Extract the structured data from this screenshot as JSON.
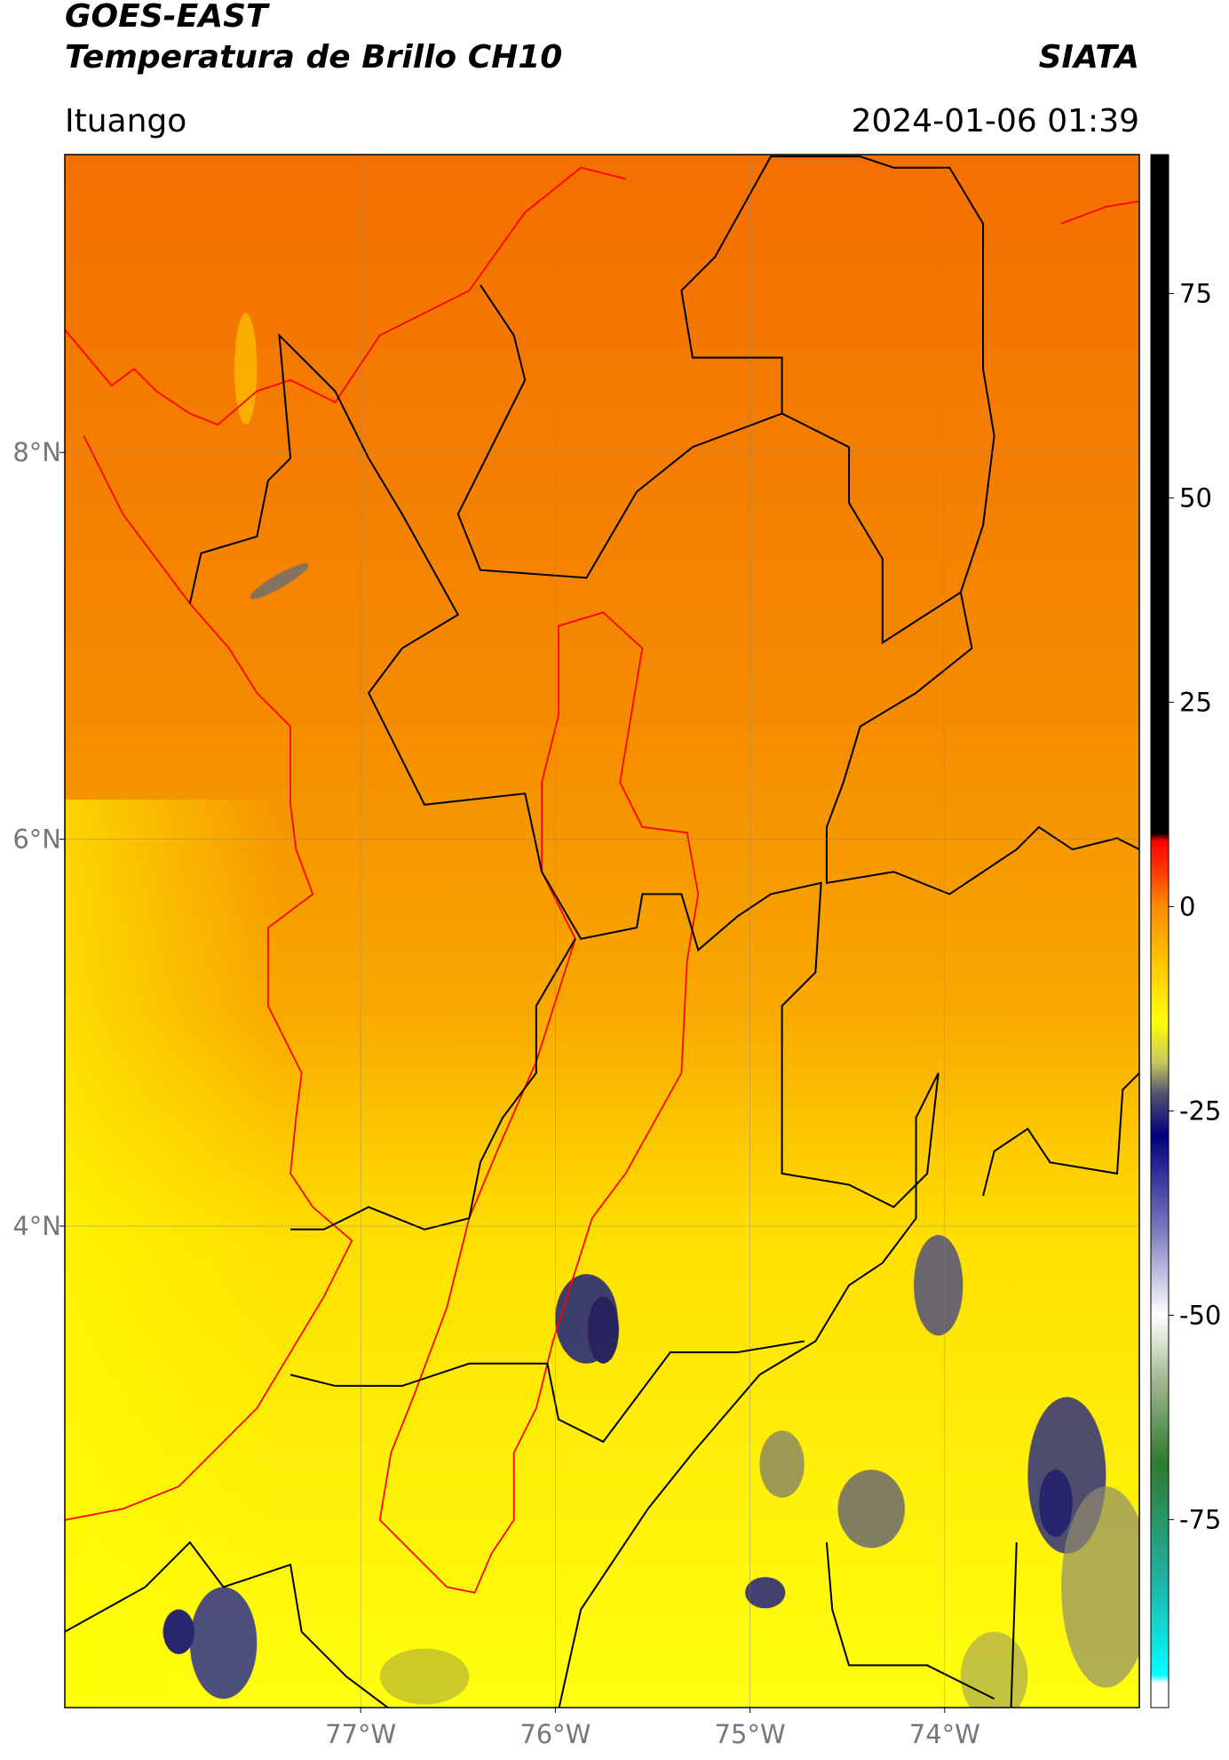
{
  "header": {
    "title": "GOES-EAST",
    "subtitle": "Temperatura de Brillo CH10",
    "brand": "SIATA",
    "location": "Ituango",
    "timestamp": "2024-01-06 01:39"
  },
  "map": {
    "xlim": [
      -78.52,
      -73.0
    ],
    "ylim": [
      1.51,
      9.54
    ],
    "xticks": [
      {
        "value": -77,
        "label": "77°W"
      },
      {
        "value": -76,
        "label": "76°W"
      },
      {
        "value": -75,
        "label": "75°W"
      },
      {
        "value": -74,
        "label": "74°W"
      }
    ],
    "yticks": [
      {
        "value": 8,
        "label": "8°N"
      },
      {
        "value": 6,
        "label": "6°N"
      },
      {
        "value": 4,
        "label": "4°N"
      }
    ],
    "grid": true
  },
  "colorbar": {
    "lim": [
      -98,
      92
    ],
    "ticks": [
      75,
      50,
      25,
      0,
      -25,
      -50,
      -75
    ],
    "stops": [
      {
        "value": 92,
        "color": "#000000"
      },
      {
        "value": 9,
        "color": "#000000"
      },
      {
        "value": 8,
        "color": "#ff0000"
      },
      {
        "value": 4,
        "color": "#ff4000"
      },
      {
        "value": 0,
        "color": "#ff8c00"
      },
      {
        "value": -14,
        "color": "#ffff00"
      },
      {
        "value": -19,
        "color": "#c8c860"
      },
      {
        "value": -23,
        "color": "#505070"
      },
      {
        "value": -28,
        "color": "#000080"
      },
      {
        "value": -40,
        "color": "#8080c0"
      },
      {
        "value": -50,
        "color": "#ffffff"
      },
      {
        "value": -58,
        "color": "#a0b890"
      },
      {
        "value": -68,
        "color": "#2f7a2f"
      },
      {
        "value": -82,
        "color": "#20b0a0"
      },
      {
        "value": -94,
        "color": "#00ffff"
      },
      {
        "value": -95,
        "color": "#ffffff"
      },
      {
        "value": -98,
        "color": "#ffffff"
      }
    ]
  }
}
